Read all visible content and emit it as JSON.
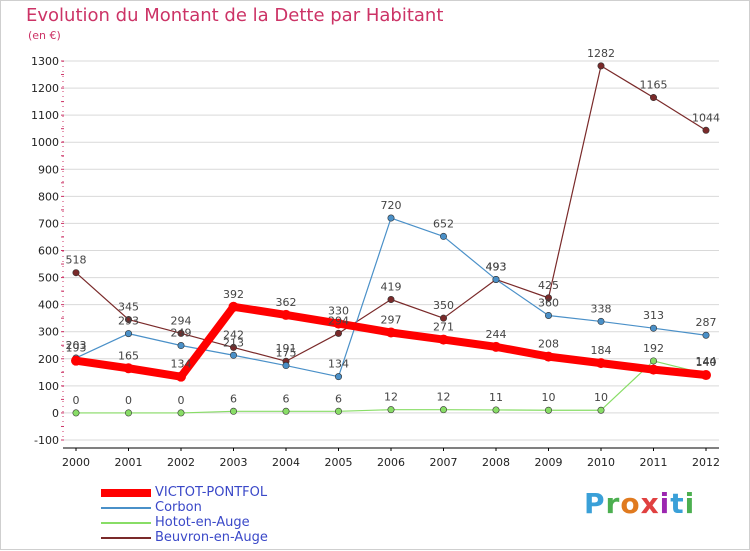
{
  "header": {
    "title": "Evolution du Montant de la Dette par Habitant",
    "subtitle": "(en €)"
  },
  "logo": {
    "text": "Proxiti",
    "colors": [
      "#3aa0d8",
      "#4caf50",
      "#e07a1f",
      "#e04040",
      "#9c27b0",
      "#3aa0d8",
      "#4caf50"
    ]
  },
  "colors": {
    "title": "#cc3366",
    "legend_text": "#3a48c8",
    "grid": "#d9d9d9",
    "axis": "#000000"
  },
  "chart_data": {
    "type": "line",
    "title": "Evolution du Montant de la Dette par Habitant",
    "subtitle": "(en €)",
    "xlabel": "",
    "ylabel": "",
    "categories": [
      "2000",
      "2001",
      "2002",
      "2003",
      "2004",
      "2005",
      "2006",
      "2007",
      "2008",
      "2009",
      "2010",
      "2011",
      "2012"
    ],
    "ylim": [
      -100,
      1300
    ],
    "yticks": [
      -100,
      0,
      100,
      200,
      300,
      400,
      500,
      600,
      700,
      800,
      900,
      1000,
      1100,
      1200,
      1300
    ],
    "grid": "horizontal",
    "legend_position": "bottom-left",
    "series": [
      {
        "name": "VICTOT-PONTFOL",
        "color": "#ff0000",
        "emphasis": true,
        "values": [
          193,
          165,
          134,
          392,
          362,
          330,
          297,
          271,
          244,
          208,
          184,
          160,
          140
        ],
        "labels": [
          "193",
          "165",
          "134",
          "392",
          "362",
          "330",
          "297",
          "271",
          "244",
          "208",
          "184",
          "",
          "140"
        ]
      },
      {
        "name": "Corbon",
        "color": "#4a90c8",
        "values": [
          203,
          293,
          249,
          213,
          175,
          134,
          720,
          652,
          493,
          360,
          338,
          313,
          287
        ],
        "labels": [
          "203",
          "293",
          "249",
          "213",
          "175",
          "134",
          "720",
          "652",
          "493",
          "360",
          "338",
          "313",
          "287"
        ]
      },
      {
        "name": "Hotot-en-Auge",
        "color": "#88dd66",
        "values": [
          0,
          0,
          0,
          6,
          6,
          6,
          12,
          12,
          11,
          10,
          10,
          192,
          144
        ],
        "labels": [
          "0",
          "0",
          "0",
          "6",
          "6",
          "6",
          "12",
          "12",
          "11",
          "10",
          "10",
          "192",
          "144"
        ]
      },
      {
        "name": "Beuvron-en-Auge",
        "color": "#7a2a2a",
        "values": [
          518,
          345,
          294,
          242,
          191,
          294,
          419,
          350,
          493,
          425,
          1282,
          1165,
          1044
        ],
        "labels": [
          "518",
          "345",
          "294",
          "242",
          "191",
          "294",
          "419",
          "350",
          "493",
          "425",
          "1282",
          "1165",
          "1044"
        ]
      }
    ]
  }
}
